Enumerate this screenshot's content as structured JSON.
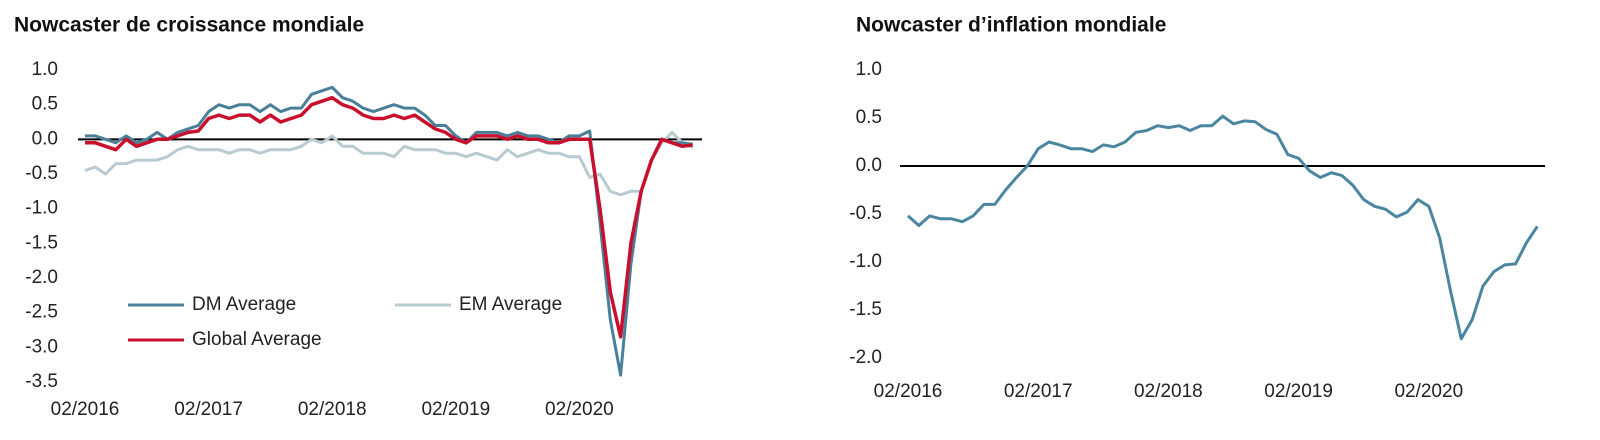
{
  "chart_data": [
    {
      "type": "line",
      "title": "Nowcaster de croissance mondiale",
      "x": [
        "02/2016",
        "03/2016",
        "04/2016",
        "05/2016",
        "06/2016",
        "07/2016",
        "08/2016",
        "09/2016",
        "10/2016",
        "11/2016",
        "12/2016",
        "01/2017",
        "02/2017",
        "03/2017",
        "04/2017",
        "05/2017",
        "06/2017",
        "07/2017",
        "08/2017",
        "09/2017",
        "10/2017",
        "11/2017",
        "12/2017",
        "01/2018",
        "02/2018",
        "03/2018",
        "04/2018",
        "05/2018",
        "06/2018",
        "07/2018",
        "08/2018",
        "09/2018",
        "10/2018",
        "11/2018",
        "12/2018",
        "01/2019",
        "02/2019",
        "03/2019",
        "04/2019",
        "05/2019",
        "06/2019",
        "07/2019",
        "08/2019",
        "09/2019",
        "10/2019",
        "11/2019",
        "12/2019",
        "01/2020",
        "02/2020",
        "03/2020",
        "04/2020",
        "05/2020",
        "06/2020",
        "07/2020",
        "08/2020",
        "09/2020",
        "10/2020",
        "11/2020",
        "12/2020",
        "01/2021"
      ],
      "xticks": [
        "02/2016",
        "02/2017",
        "02/2018",
        "02/2019",
        "02/2020"
      ],
      "ylim": [
        -3.5,
        1.0
      ],
      "yticks": [
        {
          "value": 1.0,
          "label": "1.0"
        },
        0.5,
        {
          "value": 0,
          "label": "0.0"
        },
        -0.5,
        {
          "value": -1.0,
          "label": "-1.0"
        },
        -1.5,
        {
          "value": -2.0,
          "label": "-2.0"
        },
        -2.5,
        {
          "value": -3.0,
          "label": "-3.0"
        },
        -3.5
      ],
      "series": [
        {
          "name": "DM Average",
          "color": "#4a7f99",
          "values": [
            0.05,
            0.05,
            0.0,
            -0.05,
            0.05,
            -0.05,
            0.0,
            0.1,
            0.0,
            0.1,
            0.15,
            0.2,
            0.4,
            0.5,
            0.45,
            0.5,
            0.5,
            0.4,
            0.5,
            0.4,
            0.45,
            0.45,
            0.65,
            0.7,
            0.75,
            0.6,
            0.55,
            0.45,
            0.4,
            0.45,
            0.5,
            0.45,
            0.45,
            0.35,
            0.2,
            0.2,
            0.05,
            -0.05,
            0.1,
            0.1,
            0.1,
            0.05,
            0.1,
            0.05,
            0.05,
            0.0,
            -0.05,
            0.05,
            0.05,
            0.12,
            -1.2,
            -2.6,
            -3.4,
            -1.8,
            -0.75,
            -0.3,
            0.0,
            -0.05,
            -0.05,
            -0.07
          ]
        },
        {
          "name": "EM Average",
          "color": "#b9cbd0",
          "values": [
            -0.45,
            -0.4,
            -0.5,
            -0.35,
            -0.35,
            -0.3,
            -0.3,
            -0.3,
            -0.25,
            -0.15,
            -0.1,
            -0.15,
            -0.15,
            -0.15,
            -0.2,
            -0.15,
            -0.15,
            -0.2,
            -0.15,
            -0.15,
            -0.15,
            -0.1,
            0.0,
            -0.05,
            0.05,
            -0.1,
            -0.1,
            -0.2,
            -0.2,
            -0.2,
            -0.25,
            -0.1,
            -0.15,
            -0.15,
            -0.15,
            -0.2,
            -0.2,
            -0.25,
            -0.2,
            -0.25,
            -0.3,
            -0.15,
            -0.25,
            -0.2,
            -0.15,
            -0.2,
            -0.2,
            -0.25,
            -0.25,
            -0.55,
            -0.5,
            -0.75,
            -0.8,
            -0.75,
            -0.75,
            -0.3,
            -0.05,
            0.1,
            -0.05,
            -0.12
          ]
        },
        {
          "name": "Global Average",
          "color": "#c8102e",
          "values": [
            -0.05,
            -0.05,
            -0.1,
            -0.15,
            0.0,
            -0.1,
            -0.05,
            0.0,
            0.0,
            0.05,
            0.1,
            0.12,
            0.3,
            0.35,
            0.3,
            0.35,
            0.35,
            0.25,
            0.35,
            0.25,
            0.3,
            0.35,
            0.5,
            0.55,
            0.6,
            0.5,
            0.45,
            0.35,
            0.3,
            0.3,
            0.35,
            0.3,
            0.35,
            0.25,
            0.15,
            0.1,
            0.0,
            -0.05,
            0.05,
            0.05,
            0.05,
            0.0,
            0.05,
            0.0,
            0.0,
            -0.05,
            -0.05,
            0.0,
            0.0,
            0.0,
            -1.0,
            -2.2,
            -2.85,
            -1.5,
            -0.75,
            -0.3,
            0.0,
            -0.05,
            -0.1,
            -0.08
          ]
        }
      ]
    },
    {
      "type": "line",
      "title": "Nowcaster d’inflation mondiale",
      "x": [
        "02/2016",
        "03/2016",
        "04/2016",
        "05/2016",
        "06/2016",
        "07/2016",
        "08/2016",
        "09/2016",
        "10/2016",
        "11/2016",
        "12/2016",
        "01/2017",
        "02/2017",
        "03/2017",
        "04/2017",
        "05/2017",
        "06/2017",
        "07/2017",
        "08/2017",
        "09/2017",
        "10/2017",
        "11/2017",
        "12/2017",
        "01/2018",
        "02/2018",
        "03/2018",
        "04/2018",
        "05/2018",
        "06/2018",
        "07/2018",
        "08/2018",
        "09/2018",
        "10/2018",
        "11/2018",
        "12/2018",
        "01/2019",
        "02/2019",
        "03/2019",
        "04/2019",
        "05/2019",
        "06/2019",
        "07/2019",
        "08/2019",
        "09/2019",
        "10/2019",
        "11/2019",
        "12/2019",
        "01/2020",
        "02/2020",
        "03/2020",
        "04/2020",
        "05/2020",
        "06/2020",
        "07/2020",
        "08/2020",
        "09/2020",
        "10/2020",
        "11/2020",
        "12/2020"
      ],
      "xticks": [
        "02/2016",
        "02/2017",
        "02/2018",
        "02/2019",
        "02/2020"
      ],
      "ylim": [
        -2.0,
        1.0
      ],
      "yticks": [
        {
          "value": 1.0,
          "label": "1.0"
        },
        0.5,
        {
          "value": 0,
          "label": "0.0"
        },
        -0.5,
        {
          "value": -1.0,
          "label": "-1.0"
        },
        -1.5,
        {
          "value": -2.0,
          "label": "-2.0"
        }
      ],
      "color": "#4a86a0",
      "values": [
        -0.52,
        -0.62,
        -0.52,
        -0.55,
        -0.55,
        -0.58,
        -0.52,
        -0.4,
        -0.4,
        -0.25,
        -0.12,
        0.0,
        0.18,
        0.25,
        0.22,
        0.18,
        0.18,
        0.15,
        0.22,
        0.2,
        0.25,
        0.35,
        0.37,
        0.42,
        0.4,
        0.42,
        0.37,
        0.42,
        0.42,
        0.52,
        0.44,
        0.47,
        0.46,
        0.38,
        0.33,
        0.12,
        0.08,
        -0.05,
        -0.12,
        -0.07,
        -0.1,
        -0.2,
        -0.35,
        -0.42,
        -0.45,
        -0.53,
        -0.48,
        -0.35,
        -0.42,
        -0.75,
        -1.3,
        -1.8,
        -1.6,
        -1.25,
        -1.1,
        -1.03,
        -1.02,
        -0.8,
        -0.63
      ]
    }
  ]
}
